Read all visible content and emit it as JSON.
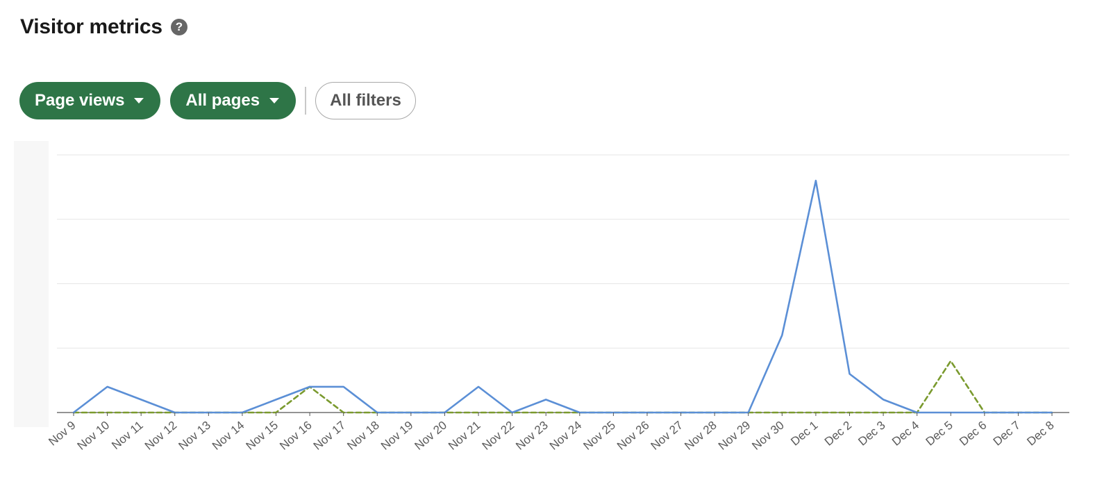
{
  "header": {
    "title": "Visitor metrics",
    "help_icon": "question-circle-icon"
  },
  "filters": {
    "metric_label": "Page views",
    "pages_label": "All pages",
    "all_filters_label": "All filters",
    "caret_icon": "caret-down-icon"
  },
  "colors": {
    "accent_green": "#2e7547",
    "series_blue": "#5b8fd6",
    "series_olive": "#7a9a2e",
    "gridline": "#e6e6e6",
    "axis": "#555555"
  },
  "chart_data": {
    "type": "line",
    "categories": [
      "Nov 9",
      "Nov 10",
      "Nov 11",
      "Nov 12",
      "Nov 13",
      "Nov 14",
      "Nov 15",
      "Nov 16",
      "Nov 17",
      "Nov 18",
      "Nov 19",
      "Nov 20",
      "Nov 21",
      "Nov 22",
      "Nov 23",
      "Nov 24",
      "Nov 25",
      "Nov 26",
      "Nov 27",
      "Nov 28",
      "Nov 29",
      "Nov 30",
      "Dec 1",
      "Dec 2",
      "Dec 3",
      "Dec 4",
      "Dec 5",
      "Dec 6",
      "Dec 7",
      "Dec 8"
    ],
    "series": [
      {
        "style": "solid",
        "color": "#5b8fd6",
        "values": [
          0,
          2,
          1,
          0,
          0,
          0,
          1,
          2,
          2,
          0,
          0,
          0,
          2,
          0,
          1,
          0,
          0,
          0,
          0,
          0,
          0,
          6,
          18,
          3,
          1,
          0,
          0,
          0,
          0,
          0
        ]
      },
      {
        "style": "dashed",
        "color": "#7a9a2e",
        "values": [
          0,
          0,
          0,
          0,
          0,
          0,
          0,
          2,
          0,
          0,
          0,
          0,
          0,
          0,
          0,
          0,
          0,
          0,
          0,
          0,
          0,
          0,
          0,
          0,
          0,
          0,
          4,
          0,
          0,
          0
        ]
      }
    ],
    "ylim": [
      0,
      20
    ],
    "y_ticks_labeled": false,
    "grid": true,
    "legend": "none"
  }
}
